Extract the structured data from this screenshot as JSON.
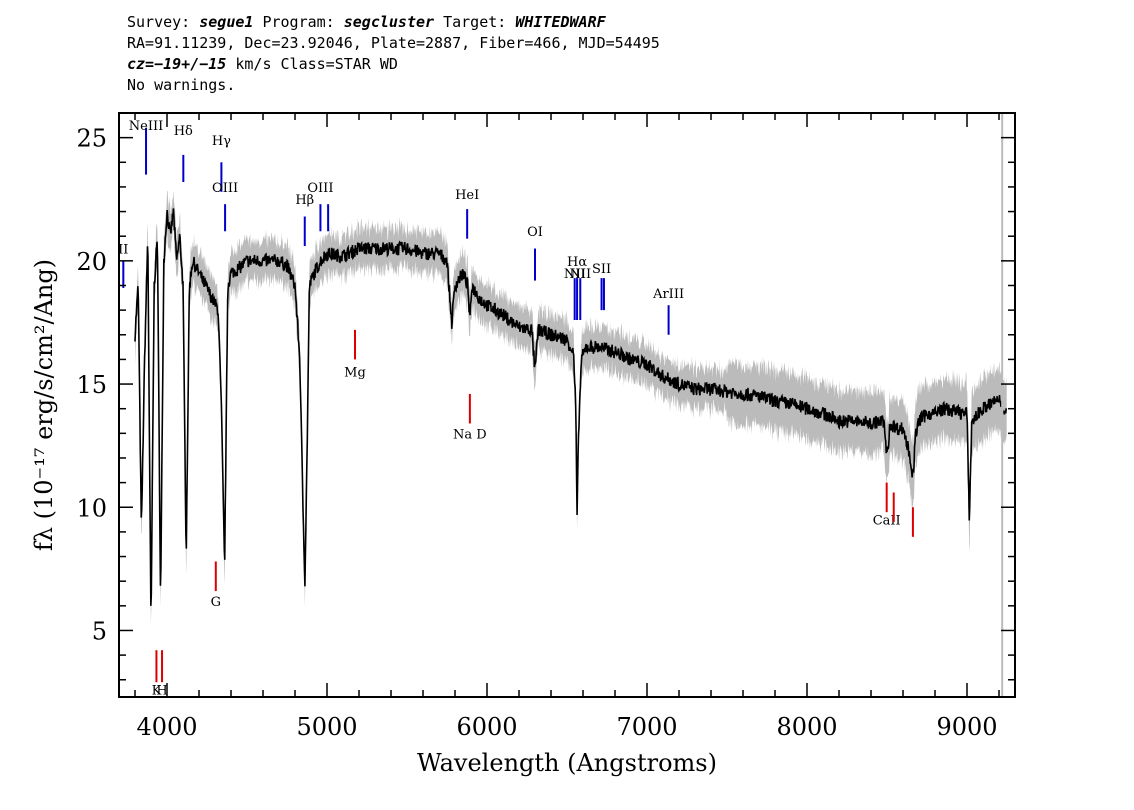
{
  "header": {
    "line1": {
      "survey_label": "Survey: ",
      "survey": "segue1",
      "program_label": " Program: ",
      "program": "segcluster",
      "target_label": " Target: ",
      "target": "WHITEDWARF"
    },
    "line2": "RA=91.11239, Dec=23.92046, Plate=2887, Fiber=466, MJD=54495",
    "line3": {
      "cz": "cz=−19+/−15",
      "rest": " km/s Class=STAR WD"
    },
    "line4": "No warnings."
  },
  "colors": {
    "flux": "#000000",
    "error": "#bbbbbb",
    "emission_line": "#0000cc",
    "absorption_line": "#dd0000",
    "axis": "#000000"
  },
  "chart_data": {
    "type": "line",
    "xlabel": "Wavelength (Angstroms)",
    "ylabel": "fλ (10⁻¹⁷ erg/s/cm²/Ang)",
    "xlim": [
      3700,
      9300
    ],
    "ylim": [
      2.3,
      26
    ],
    "x_ticks": [
      4000,
      5000,
      6000,
      7000,
      8000,
      9000
    ],
    "y_ticks": [
      5,
      10,
      15,
      20,
      25
    ],
    "grid": false,
    "series": [
      {
        "role": "flux",
        "x": [
          3800,
          3820,
          3840,
          3860,
          3880,
          3900,
          3920,
          3940,
          3960,
          3980,
          4000,
          4020,
          4040,
          4060,
          4080,
          4100,
          4120,
          4140,
          4160,
          4200,
          4240,
          4280,
          4320,
          4340,
          4360,
          4380,
          4400,
          4450,
          4500,
          4600,
          4700,
          4750,
          4800,
          4830,
          4850,
          4862,
          4875,
          4890,
          4920,
          4960,
          5000,
          5100,
          5200,
          5300,
          5400,
          5500,
          5600,
          5700,
          5750,
          5780,
          5800,
          5850,
          5880,
          5893,
          5905,
          5950,
          6000,
          6100,
          6200,
          6280,
          6300,
          6320,
          6400,
          6500,
          6540,
          6555,
          6563,
          6572,
          6590,
          6620,
          6700,
          6800,
          6900,
          7000,
          7100,
          7200,
          7300,
          7400,
          7500,
          7600,
          7700,
          7800,
          7900,
          8000,
          8100,
          8200,
          8300,
          8400,
          8480,
          8500,
          8520,
          8560,
          8600,
          8640,
          8662,
          8680,
          8700,
          8750,
          8800,
          8850,
          9000,
          9014,
          9030,
          9100,
          9200,
          9250
        ],
        "y": [
          17,
          19,
          9,
          16,
          21,
          5,
          19,
          21,
          6,
          20,
          22,
          21,
          22,
          20,
          21,
          19,
          8,
          19,
          20,
          19.5,
          19,
          18.5,
          18,
          14,
          7.5,
          19,
          19.5,
          19.7,
          20,
          20,
          20,
          19.8,
          19,
          16,
          10,
          7,
          12,
          19,
          19.5,
          20,
          20.3,
          20.2,
          20.5,
          20.5,
          20.5,
          20.5,
          20.3,
          20.3,
          20,
          17.5,
          19,
          19.5,
          19,
          17.5,
          19,
          18.5,
          18.2,
          17.8,
          17.3,
          17.2,
          15.5,
          17.2,
          17,
          16.8,
          16.3,
          14,
          9.5,
          13,
          16,
          16.5,
          16.5,
          16.3,
          16,
          15.8,
          15.3,
          15,
          14.8,
          14.8,
          14.7,
          14.6,
          14.5,
          14.3,
          14.2,
          14,
          13.8,
          13.5,
          13.5,
          13.4,
          13.5,
          12,
          13.4,
          13.2,
          13.2,
          12.2,
          11.2,
          13,
          13.5,
          13.8,
          13.8,
          14,
          13.8,
          9.5,
          13.5,
          14,
          14.4,
          13.8
        ]
      }
    ],
    "lines": [
      {
        "label": "NeIII",
        "wave": 3869,
        "kind": "emission",
        "y_top": 25.4,
        "y_bot": 23.5,
        "label_y": 25.3
      },
      {
        "label": "Hδ",
        "wave": 4102,
        "kind": "emission",
        "y_top": 24.3,
        "y_bot": 23.2,
        "label_y": 25.1
      },
      {
        "label": "Hγ",
        "wave": 4340,
        "kind": "emission",
        "y_top": 24,
        "y_bot": 22.8,
        "label_y": 24.7
      },
      {
        "label": "OIII",
        "wave": 4363,
        "kind": "emission",
        "y_top": 22.3,
        "y_bot": 21.2,
        "label_y": 22.8
      },
      {
        "label": "Hβ",
        "wave": 4861,
        "kind": "emission",
        "y_top": 21.8,
        "y_bot": 20.6,
        "label_y": 22.3
      },
      {
        "label": "OIII",
        "wave": 4959,
        "kind": "emission",
        "y_top": 22.3,
        "y_bot": 21.2,
        "label_y": 22.8
      },
      {
        "label": "",
        "wave": 5007,
        "kind": "emission",
        "y_top": 22.3,
        "y_bot": 21.2,
        "label_y": 22.8
      },
      {
        "label": "HeI",
        "wave": 5876,
        "kind": "emission",
        "y_top": 22.1,
        "y_bot": 20.9,
        "label_y": 22.5
      },
      {
        "label": "OI",
        "wave": 6300,
        "kind": "emission",
        "y_top": 20.5,
        "y_bot": 19.2,
        "label_y": 21
      },
      {
        "label": "NII",
        "wave": 6548,
        "kind": "emission",
        "y_top": 19.3,
        "y_bot": 17.6,
        "label_y": 19.3
      },
      {
        "label": "Hα",
        "wave": 6563,
        "kind": "emission",
        "y_top": 19.3,
        "y_bot": 17.6,
        "label_y": 19.8
      },
      {
        "label": "NII",
        "wave": 6583,
        "kind": "emission",
        "y_top": 19.3,
        "y_bot": 17.6,
        "label_y": 19.3
      },
      {
        "label": "SII",
        "wave": 6716,
        "kind": "emission",
        "y_top": 19.3,
        "y_bot": 18,
        "label_y": 19.5
      },
      {
        "label": "",
        "wave": 6731,
        "kind": "emission",
        "y_top": 19.3,
        "y_bot": 18,
        "label_y": 19.5
      },
      {
        "label": "ArIII",
        "wave": 7135,
        "kind": "emission",
        "y_top": 18.2,
        "y_bot": 17,
        "label_y": 18.5
      },
      {
        "label": "II",
        "wave": 3727,
        "kind": "emission",
        "y_top": 20,
        "y_bot": 18.9,
        "label_y": 20.3
      },
      {
        "label": "Mg",
        "wave": 5175,
        "kind": "absorption",
        "y_top": 17.2,
        "y_bot": 16,
        "label_y": 15.3
      },
      {
        "label": "Na D",
        "wave": 5893,
        "kind": "absorption",
        "y_top": 14.6,
        "y_bot": 13.4,
        "label_y": 12.8
      },
      {
        "label": "G",
        "wave": 4305,
        "kind": "absorption",
        "y_top": 7.8,
        "y_bot": 6.6,
        "label_y": 6
      },
      {
        "label": "K",
        "wave": 3934,
        "kind": "absorption",
        "y_top": 4.2,
        "y_bot": 2.9,
        "label_y": 2.4
      },
      {
        "label": "H",
        "wave": 3969,
        "kind": "absorption",
        "y_top": 4.2,
        "y_bot": 2.9,
        "label_y": 2.4
      },
      {
        "label": "CaII",
        "wave": 8498,
        "kind": "absorption",
        "y_top": 11,
        "y_bot": 9.8,
        "label_y": 9.3
      },
      {
        "label": "",
        "wave": 8542,
        "kind": "absorption",
        "y_top": 10.6,
        "y_bot": 9.4,
        "label_y": 9.3
      },
      {
        "label": "",
        "wave": 8662,
        "kind": "absorption",
        "y_top": 10,
        "y_bot": 8.8,
        "label_y": 9.3
      }
    ]
  }
}
